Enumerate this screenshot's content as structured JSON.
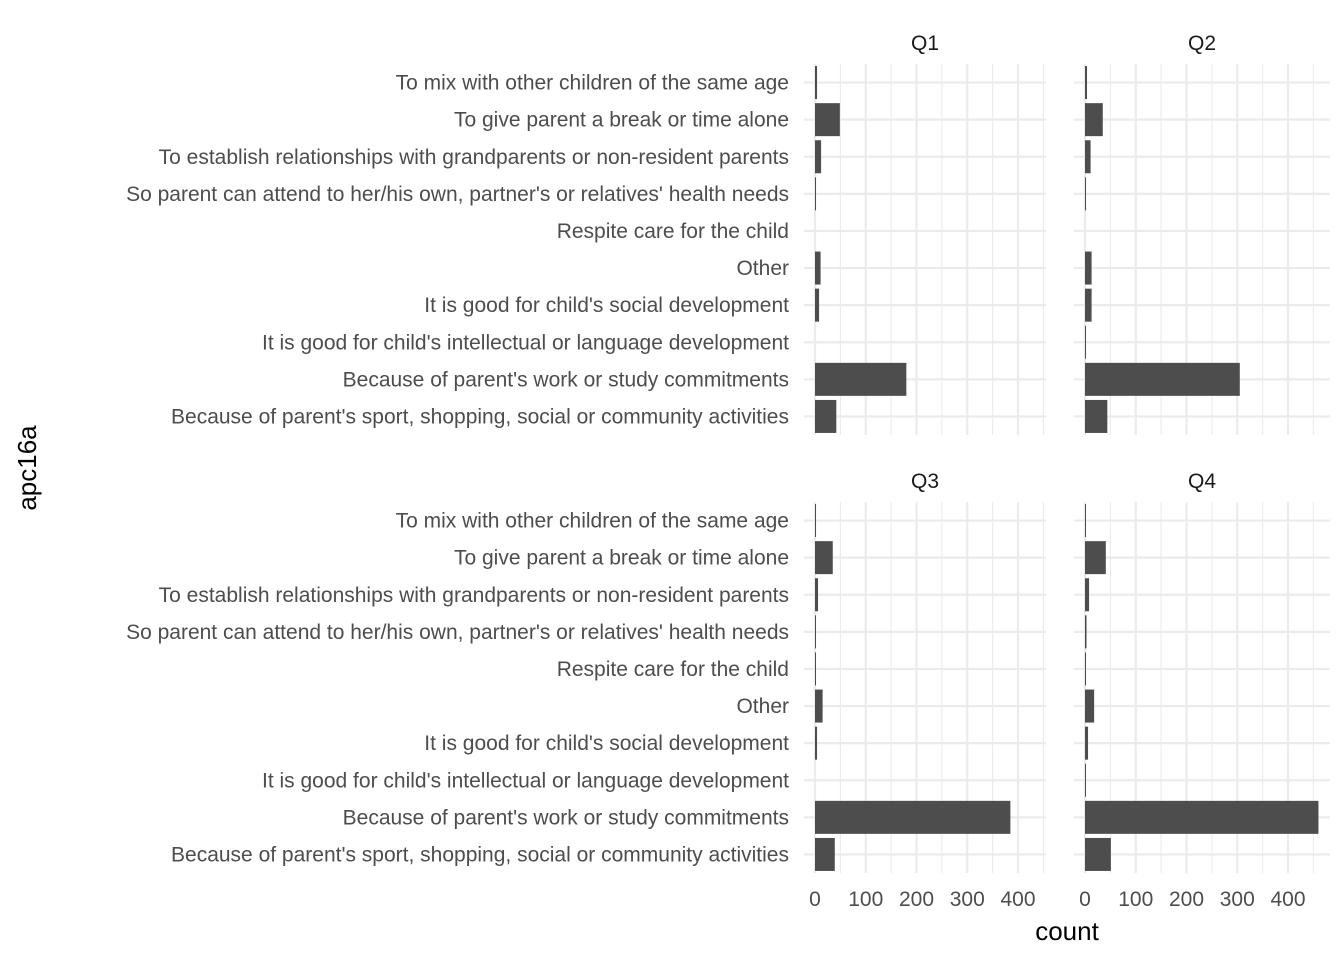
{
  "chart_data": {
    "type": "bar",
    "orientation": "horizontal",
    "facets": [
      "Q1",
      "Q2",
      "Q3",
      "Q4"
    ],
    "categories": [
      "To mix with other children of the same age",
      "To give parent a break or time alone",
      "To establish relationships with grandparents or non-resident parents",
      "So parent can attend to her/his own, partner's or relatives' health needs",
      "Respite care for the child",
      "Other",
      "It is good for child's social development",
      "It is good for child's intellectual or language development",
      "Because of parent's work or study commitments",
      "Because of parent's sport, shopping, social or community activities"
    ],
    "series": [
      {
        "facet": "Q1",
        "values": [
          4,
          49,
          12,
          2,
          0,
          11,
          8,
          0,
          180,
          42
        ]
      },
      {
        "facet": "Q2",
        "values": [
          4,
          35,
          11,
          2,
          0,
          13,
          13,
          2,
          305,
          44
        ]
      },
      {
        "facet": "Q3",
        "values": [
          2,
          35,
          6,
          1,
          1,
          15,
          4,
          0,
          385,
          39
        ]
      },
      {
        "facet": "Q4",
        "values": [
          1,
          41,
          8,
          3,
          2,
          18,
          6,
          1,
          460,
          51
        ]
      }
    ],
    "xlabel": "count",
    "ylabel": "apc16a",
    "xlim": [
      0,
      460
    ],
    "xticks": [
      "0",
      "100",
      "200",
      "300",
      "400"
    ],
    "grid": true,
    "bar_color": "#4d4d4d",
    "grid_color": "#ebebeb"
  }
}
